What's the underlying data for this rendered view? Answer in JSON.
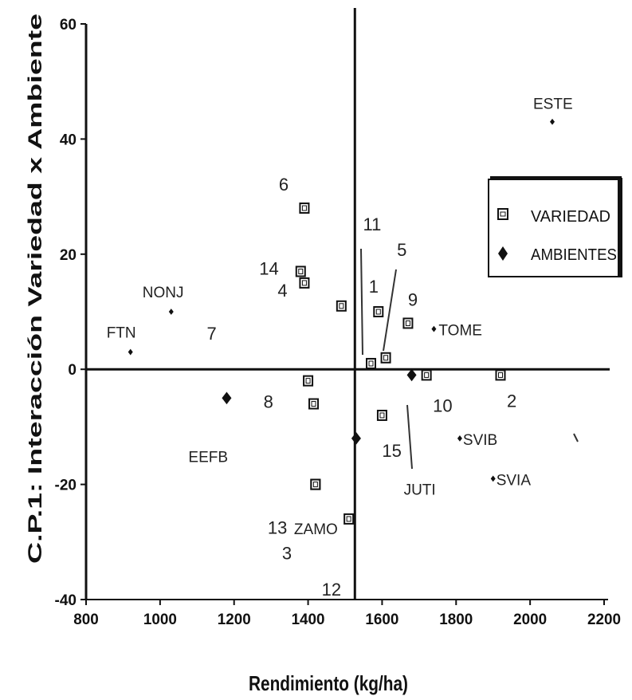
{
  "chart_data": {
    "type": "scatter",
    "xlabel": "Rendimiento (kg/ha)",
    "ylabel": "C.P.1: Interacción Variedad x Ambiente",
    "xlim": [
      800,
      2200
    ],
    "ylim": [
      -40,
      60
    ],
    "x_ticks": [
      "800",
      "1000",
      "1200",
      "1400",
      "1600",
      "1800",
      "2000",
      "2200"
    ],
    "y_ticks": [
      "-40",
      "-20",
      "0",
      "20",
      "40",
      "60"
    ],
    "reference_lines": {
      "x": 1520,
      "y": 0
    },
    "legend": {
      "placement": "right",
      "entries": [
        {
          "label": "VARIEDAD",
          "marker": "square"
        },
        {
          "label": "AMBIENTES",
          "marker": "diamond"
        }
      ]
    },
    "series": [
      {
        "name": "VARIEDAD",
        "marker": "square",
        "points": [
          {
            "label": "1",
            "x": 1590,
            "y": 10
          },
          {
            "label": "2",
            "x": 1920,
            "y": -1
          },
          {
            "label": "3",
            "x": 1420,
            "y": -20
          },
          {
            "label": "4",
            "x": 1490,
            "y": 11
          },
          {
            "label": "5",
            "x": 1610,
            "y": 2
          },
          {
            "label": "6",
            "x": 1390,
            "y": 28
          },
          {
            "label": "7",
            "x": 1570,
            "y": 1
          },
          {
            "label": "8",
            "x": 1400,
            "y": -2
          },
          {
            "label": "9",
            "x": 1670,
            "y": 8
          },
          {
            "label": "10",
            "x": 1720,
            "y": -1
          },
          {
            "label": "11",
            "x": 1570,
            "y": 1
          },
          {
            "label": "12",
            "x": 1510,
            "y": -26
          },
          {
            "label": "13",
            "x": 1420,
            "y": -20
          },
          {
            "label": "14",
            "x": 1380,
            "y": 17
          },
          {
            "label": "14",
            "x": 1390,
            "y": 15
          },
          {
            "label": "15",
            "x": 1600,
            "y": -8
          },
          {
            "label": "",
            "x": 1415,
            "y": -6
          }
        ]
      },
      {
        "name": "AMBIENTES",
        "marker": "diamond",
        "points": [
          {
            "label": "ESTE",
            "x": 2060,
            "y": 43
          },
          {
            "label": "NONJ",
            "x": 1030,
            "y": 10
          },
          {
            "label": "FTN",
            "x": 920,
            "y": 3
          },
          {
            "label": "TOME",
            "x": 1740,
            "y": 7
          },
          {
            "label": "EEFB",
            "x": 1180,
            "y": -5
          },
          {
            "label": "ZAMO",
            "x": 1530,
            "y": -12
          },
          {
            "label": "JUTI",
            "x": 1680,
            "y": -1
          },
          {
            "label": "SVIB",
            "x": 1810,
            "y": -12
          },
          {
            "label": "SVIA",
            "x": 1900,
            "y": -19
          }
        ]
      }
    ]
  }
}
